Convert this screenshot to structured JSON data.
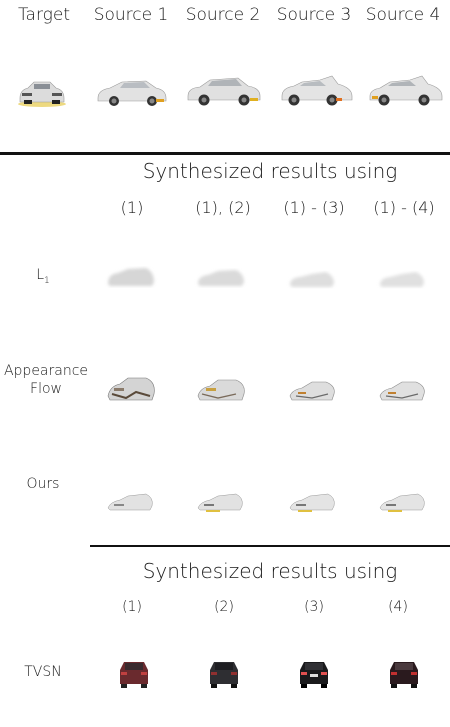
{
  "top_headers": [
    "Target",
    "Source 1",
    "Source 2",
    "Source 3",
    "Source 4"
  ],
  "section1": {
    "title": "Synthesized results using",
    "columns": [
      "(1)",
      "(1), (2)",
      "(1) - (3)",
      "(1) - (4)"
    ],
    "rows": [
      {
        "label_main": "L",
        "label_sub": "1"
      },
      {
        "label_line1": "Appearance",
        "label_line2": "Flow"
      },
      {
        "label": "Ours"
      }
    ]
  },
  "section2": {
    "title": "Synthesized results using",
    "columns": [
      "(1)",
      "(2)",
      "(3)",
      "(4)"
    ],
    "row_label": "TVSN"
  }
}
